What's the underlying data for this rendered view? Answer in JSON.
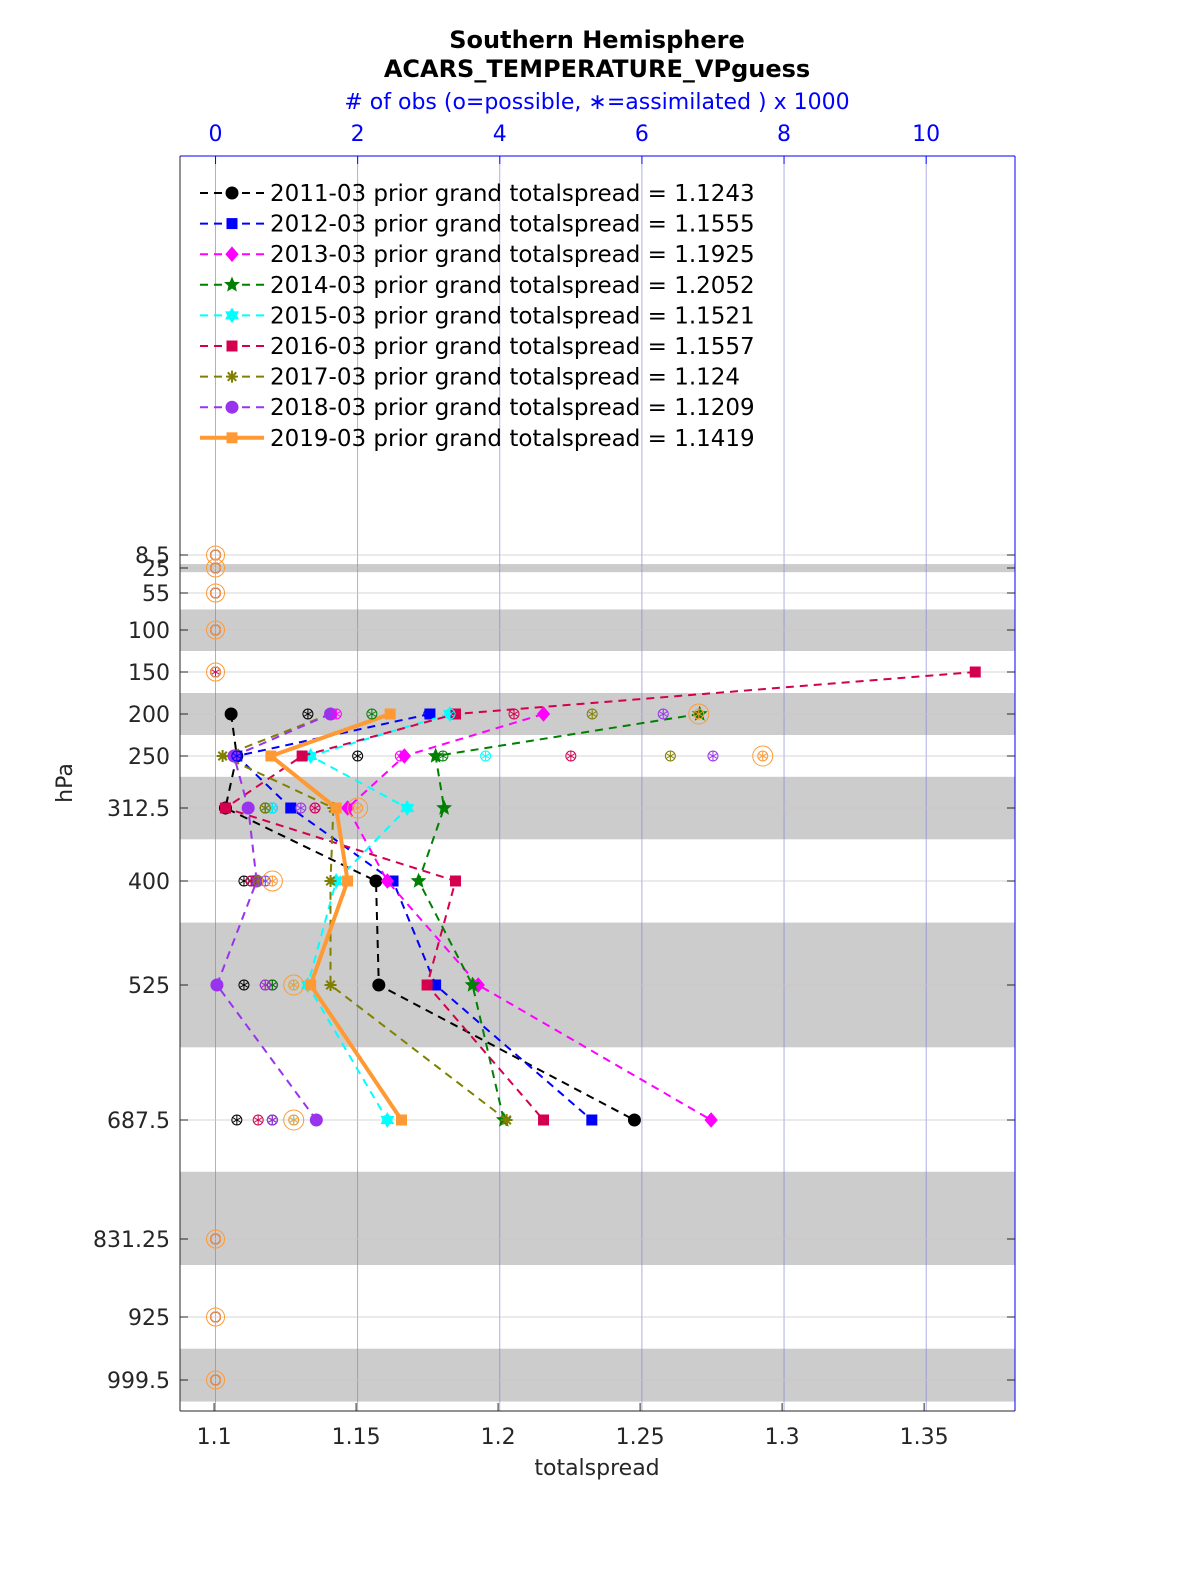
{
  "chart_data": {
    "type": "line",
    "title": "Southern Hemisphere",
    "subtitle": "ACARS_TEMPERATURE_VPguess",
    "top_axis_label": "# of obs (o=possible, ∗=assimilated ) x 1000",
    "xlabel": "totalspread",
    "ylabel": "hPa",
    "xlim": [
      1.088,
      1.382
    ],
    "x_ticks": [
      "1.1",
      "1.15",
      "1.2",
      "1.25",
      "1.3",
      "1.35"
    ],
    "top_xlim": [
      -0.5,
      11.25
    ],
    "top_ticks": [
      "0",
      "2",
      "4",
      "6",
      "8",
      "10"
    ],
    "levels": [
      8.5,
      25,
      55,
      100,
      150,
      200,
      250,
      312.5,
      400,
      525,
      687.5,
      831.25,
      925,
      999.5
    ],
    "level_labels": [
      "8.5",
      "25",
      "55",
      "100",
      "150",
      "200",
      "250",
      "312.5",
      "400",
      "525",
      "687.5",
      "831.25",
      "925",
      "999.5"
    ],
    "level_bands": [
      [
        20,
        30
      ],
      [
        75,
        125
      ],
      [
        175,
        225
      ],
      [
        275,
        350
      ],
      [
        450,
        600
      ],
      [
        750,
        862.5
      ],
      [
        962.5,
        1025
      ]
    ],
    "series": [
      {
        "name": "2011-03",
        "legend": "2011-03 prior grand totalspread = 1.1243",
        "color": "#000000",
        "marker": "circle",
        "dash": "8,6",
        "width": 2,
        "levels": [
          200,
          250,
          312.5,
          400,
          525,
          687.5
        ],
        "values": [
          1.106,
          1.108,
          1.104,
          1.157,
          1.158,
          1.248
        ],
        "obs_possible": [
          1.3,
          2.0,
          0.7,
          0.4,
          0.4,
          0.3
        ],
        "obs_assimilated": [
          1.3,
          2.0,
          0.7,
          0.4,
          0.4,
          0.3
        ]
      },
      {
        "name": "2012-03",
        "legend": "2012-03 prior grand totalspread = 1.1555",
        "color": "#0000ff",
        "marker": "square",
        "dash": "8,6",
        "width": 2,
        "levels": [
          200,
          250,
          312.5,
          400,
          525,
          687.5
        ],
        "values": [
          1.176,
          1.108,
          1.127,
          1.163,
          1.178,
          1.233
        ],
        "obs_possible": [
          3.0,
          0.3,
          0.8,
          0.5,
          0.8,
          0.8
        ],
        "obs_assimilated": [
          3.0,
          0.3,
          0.8,
          0.5,
          0.8,
          0.8
        ]
      },
      {
        "name": "2013-03",
        "legend": "2013-03 prior grand totalspread = 1.1925",
        "color": "#ff00ff",
        "marker": "diamond",
        "dash": "8,6",
        "width": 2,
        "levels": [
          200,
          250,
          312.5,
          400,
          525,
          687.5
        ],
        "values": [
          1.216,
          1.167,
          1.147,
          1.161,
          1.193,
          1.275
        ],
        "obs_possible": [
          1.7,
          2.6,
          1.4,
          0.6,
          0.8,
          0.8
        ],
        "obs_assimilated": [
          1.7,
          2.6,
          1.4,
          0.6,
          0.8,
          0.8
        ]
      },
      {
        "name": "2014-03",
        "legend": "2014-03 prior grand totalspread = 1.2052",
        "color": "#008000",
        "marker": "star",
        "dash": "8,6",
        "width": 2,
        "levels": [
          200,
          250,
          312.5,
          400,
          525,
          687.5
        ],
        "values": [
          1.271,
          1.178,
          1.181,
          1.172,
          1.191,
          1.202
        ],
        "obs_possible": [
          2.2,
          3.2,
          0.7,
          0.5,
          0.8,
          0.8
        ],
        "obs_assimilated": [
          2.2,
          3.2,
          0.7,
          0.5,
          0.8,
          0.8
        ]
      },
      {
        "name": "2015-03",
        "legend": "2015-03 prior grand totalspread = 1.1521",
        "color": "#00ffff",
        "marker": "hexagram",
        "dash": "8,6",
        "width": 2,
        "levels": [
          200,
          250,
          312.5,
          400,
          525,
          687.5
        ],
        "values": [
          1.183,
          1.134,
          1.168,
          1.143,
          1.133,
          1.161
        ],
        "obs_possible": [
          3.3,
          3.8,
          0.8,
          0.7,
          1.1,
          1.1
        ],
        "obs_assimilated": [
          3.3,
          3.8,
          0.8,
          0.7,
          1.1,
          1.1
        ]
      },
      {
        "name": "2016-03",
        "legend": "2016-03 prior grand totalspread = 1.1557",
        "color": "#d4004f",
        "marker": "square",
        "dash": "8,6",
        "width": 2,
        "levels": [
          150,
          200,
          250,
          312.5,
          400,
          525,
          687.5
        ],
        "values": [
          1.368,
          1.185,
          1.131,
          1.104,
          1.185,
          1.175,
          1.216
        ],
        "obs_possible": [
          0,
          4.2,
          5.0,
          1.4,
          0.5,
          0.7,
          0.6
        ],
        "obs_assimilated": [
          0,
          4.2,
          5.0,
          1.4,
          0.5,
          0.7,
          0.6
        ]
      },
      {
        "name": "2017-03",
        "legend": "2017-03 prior grand totalspread = 1.124",
        "color": "#808000",
        "marker": "asterisk",
        "dash": "8,6",
        "width": 2,
        "levels": [
          200,
          250,
          312.5,
          400,
          525,
          687.5
        ],
        "values": [
          1.141,
          1.103,
          1.142,
          1.141,
          1.141,
          1.203
        ],
        "obs_possible": [
          5.3,
          6.4,
          0.7,
          0.6,
          0.7,
          0.8
        ],
        "obs_assimilated": [
          5.3,
          6.4,
          0.7,
          0.6,
          0.7,
          0.8
        ]
      },
      {
        "name": "2018-03",
        "legend": "2018-03 prior grand totalspread = 1.1209",
        "color": "#9933ee",
        "marker": "circle",
        "dash": "8,6",
        "width": 2,
        "levels": [
          200,
          250,
          312.5,
          400,
          525,
          687.5
        ],
        "values": [
          1.141,
          1.107,
          1.112,
          1.115,
          1.101,
          1.136
        ],
        "obs_possible": [
          6.3,
          7.0,
          1.2,
          0.7,
          0.7,
          0.8
        ],
        "obs_assimilated": [
          6.3,
          7.0,
          1.2,
          0.7,
          0.7,
          0.8
        ]
      },
      {
        "name": "2019-03",
        "legend": "2019-03 prior grand totalspread = 1.1419",
        "color": "#ff9933",
        "marker": "square",
        "dash": "",
        "width": 4,
        "levels": [
          200,
          250,
          312.5,
          400,
          525,
          687.5
        ],
        "values": [
          1.162,
          1.12,
          1.143,
          1.147,
          1.134,
          1.166
        ],
        "obs_possible": [
          6.8,
          7.7,
          2.0,
          0.8,
          1.1,
          1.1
        ],
        "obs_assimilated": [
          6.8,
          7.7,
          2.0,
          0.8,
          1.1,
          1.1
        ]
      }
    ],
    "empty_levels": [
      8.5,
      25,
      55,
      100,
      150,
      831.25,
      925,
      999.5
    ],
    "empty_obs_value": 0,
    "grid": true,
    "legend_position": "top-left"
  }
}
